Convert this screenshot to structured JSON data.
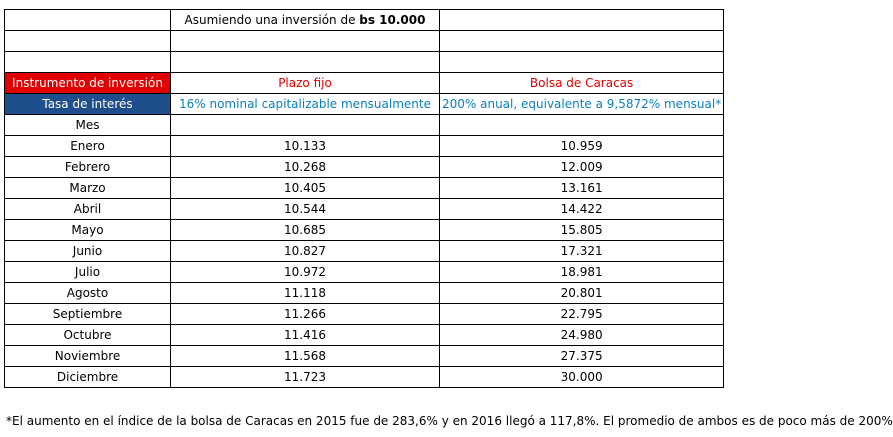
{
  "header": {
    "title_prefix": "Asumiendo una inversión de ",
    "title_amount": "bs 10.000"
  },
  "labels": {
    "instrument": "Instrumento de inversión",
    "rate": "Tasa de interés",
    "month": "Mes"
  },
  "plazo_fijo": {
    "name": "Plazo fijo",
    "rate": "16% nominal capitalizable mensualmente"
  },
  "bolsa": {
    "name": "Bolsa de Caracas",
    "rate": "200% anual, equivalente a 9,5872% mensual*"
  },
  "rows": [
    {
      "mes": "Enero",
      "plazo": "10.133",
      "bolsa": "10.959"
    },
    {
      "mes": "Febrero",
      "plazo": "10.268",
      "bolsa": "12.009"
    },
    {
      "mes": "Marzo",
      "plazo": "10.405",
      "bolsa": "13.161"
    },
    {
      "mes": "Abril",
      "plazo": "10.544",
      "bolsa": "14.422"
    },
    {
      "mes": "Mayo",
      "plazo": "10.685",
      "bolsa": "15.805"
    },
    {
      "mes": "Junio",
      "plazo": "10.827",
      "bolsa": "17.321"
    },
    {
      "mes": "Julio",
      "plazo": "10.972",
      "bolsa": "18.981"
    },
    {
      "mes": "Agosto",
      "plazo": "11.118",
      "bolsa": "20.801"
    },
    {
      "mes": "Septiembre",
      "plazo": "11.266",
      "bolsa": "22.795"
    },
    {
      "mes": "Octubre",
      "plazo": "11.416",
      "bolsa": "24.980"
    },
    {
      "mes": "Noviembre",
      "plazo": "11.568",
      "bolsa": "27.375"
    },
    {
      "mes": "Diciembre",
      "plazo": "11.723",
      "bolsa": "30.000"
    }
  ],
  "footnote": "*El aumento en el índice de la bolsa de Caracas en 2015  fue de 283,6% y en 2016  llegó a 117,8%.  El promedio de ambos es de poco más de 200%",
  "colors": {
    "red_label": "#e00000",
    "blue_label": "#1f4e8c",
    "blue_text": "#0a7fbf"
  }
}
